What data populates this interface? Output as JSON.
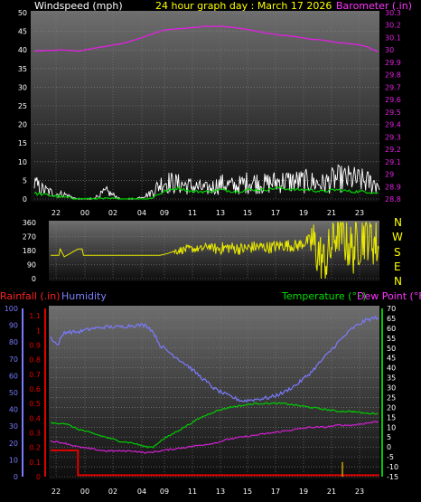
{
  "header": {
    "left_label": "Windspeed (mph)",
    "title": "24 hour graph day : March 17 2026",
    "right_label": "Barometer (.in)"
  },
  "lower_header": {
    "rainfall_label": "Rainfall (.in)",
    "humidity_label": "Humidity",
    "temperature_label": "Temperature (°F)",
    "dewpoint_label": "Dew Point (°F)"
  },
  "compass": [
    "N",
    "W",
    "S",
    "E",
    "N"
  ],
  "colors": {
    "wind_speed": "#ffffff",
    "wind_avg": "#00d000",
    "barometer": "#e020e0",
    "direction": "#e8e800",
    "rain": "#e00000",
    "rain_rate": "#c8a000",
    "humidity": "#7a7aff",
    "temperature": "#00cc00",
    "dewpoint": "#d020d0",
    "title": "#ffff00",
    "tick": "#ffffff"
  },
  "chart_data": [
    {
      "type": "line",
      "name": "wind-barometer",
      "x_tick_labels": [
        "22",
        "00",
        "02",
        "04",
        "09",
        "11",
        "13",
        "15",
        "17",
        "19",
        "21",
        "23"
      ],
      "y_left_ticks": [
        0,
        5,
        10,
        15,
        20,
        25,
        30,
        35,
        40,
        45,
        50
      ],
      "y_right_ticks": [
        "28.8",
        "28.9",
        "29",
        "29.1",
        "29.2",
        "29.3",
        "29.4",
        "29.5",
        "29.6",
        "29.7",
        "29.8",
        "29.9",
        "30",
        "30.1",
        "30.2",
        "30.3"
      ],
      "ylim_left": [
        0,
        50
      ],
      "ylim_right": [
        28.8,
        30.3
      ],
      "series": [
        {
          "key": "barometer",
          "axis": "right",
          "x": [
            0,
            2,
            3,
            4.5,
            6,
            7,
            8,
            9,
            10,
            11,
            12,
            13,
            14,
            15,
            16,
            17,
            18,
            19,
            20,
            21,
            22,
            23,
            24
          ],
          "y": [
            29.99,
            30.0,
            29.99,
            30.02,
            30.05,
            30.08,
            30.12,
            30.16,
            30.17,
            30.18,
            30.19,
            30.19,
            30.18,
            30.16,
            30.14,
            30.12,
            30.11,
            30.09,
            30.08,
            30.06,
            30.05,
            30.03,
            29.98
          ]
        },
        {
          "key": "wind_gust_envelope",
          "axis": "left",
          "x": [
            0,
            0.5,
            1,
            1.5,
            2,
            3,
            4,
            5,
            6,
            7,
            8,
            9,
            10,
            11,
            12,
            13,
            14,
            15,
            16,
            17,
            18,
            19,
            20,
            21,
            22,
            23,
            24
          ],
          "y": [
            6,
            4,
            3,
            2,
            2,
            0,
            0,
            3,
            0,
            0,
            2,
            7,
            6,
            5,
            4,
            6,
            5,
            7,
            6,
            7,
            7,
            7,
            6,
            8,
            8,
            7,
            6
          ]
        },
        {
          "key": "wind_avg",
          "axis": "left",
          "x": [
            0,
            1,
            2,
            3,
            4,
            5,
            6,
            7,
            8,
            9,
            10,
            11,
            12,
            13,
            14,
            15,
            16,
            17,
            18,
            19,
            20,
            21,
            22,
            23,
            24
          ],
          "y": [
            1.5,
            1,
            0.5,
            0,
            0,
            0,
            0,
            0,
            0,
            2,
            3,
            2,
            2,
            2.5,
            2,
            2.5,
            2.5,
            3,
            2.5,
            2.5,
            2,
            2.5,
            2,
            2,
            1.5
          ]
        }
      ]
    },
    {
      "type": "scatter",
      "name": "wind-direction",
      "y_ticks": [
        0,
        90,
        180,
        270,
        360
      ],
      "ylim": [
        0,
        360
      ],
      "x": [
        0,
        0.6,
        0.7,
        1,
        2,
        2.3,
        2.4,
        5,
        8,
        8.5,
        9,
        10,
        11,
        11.5,
        12,
        13,
        14,
        15,
        16,
        17,
        18,
        19,
        20,
        21,
        22,
        23,
        24
      ],
      "y": [
        150,
        150,
        190,
        140,
        190,
        190,
        150,
        150,
        150,
        160,
        175,
        190,
        190,
        210,
        190,
        200,
        190,
        205,
        200,
        215,
        210,
        250,
        90,
        330,
        180,
        300,
        200
      ]
    },
    {
      "type": "line",
      "name": "temp-humidity-rain",
      "y_left_humidity_ticks": [
        0,
        10,
        20,
        30,
        40,
        50,
        60,
        70,
        80,
        90,
        100
      ],
      "y_left_rain_ticks": [
        "0",
        "0.1",
        "0.2",
        "0.3",
        "0.4",
        "0.5",
        "0.6",
        "0.7",
        "0.8",
        "0.9",
        "1",
        "1.1"
      ],
      "y_right_ticks": [
        -15,
        -10,
        -5,
        0,
        5,
        10,
        15,
        20,
        25,
        30,
        35,
        40,
        45,
        50,
        55,
        60,
        65,
        70
      ],
      "ylim_humidity": [
        0,
        100
      ],
      "ylim_rain": [
        0,
        1.15
      ],
      "ylim_temp": [
        -15,
        70
      ],
      "series": [
        {
          "key": "humidity",
          "axis": "humidity",
          "x": [
            0,
            0.5,
            1,
            2,
            3,
            4,
            5,
            6,
            7,
            7.5,
            8,
            9,
            10,
            11,
            12,
            13,
            14,
            15,
            16,
            17,
            18,
            19,
            20,
            21,
            22,
            23,
            24
          ],
          "y": [
            83,
            78,
            86,
            86,
            88,
            89,
            89,
            90,
            90,
            86,
            78,
            72,
            66,
            59,
            52,
            48,
            45,
            46,
            47,
            50,
            55,
            62,
            71,
            80,
            88,
            93,
            95
          ]
        },
        {
          "key": "temperature",
          "axis": "temp",
          "x": [
            0,
            1,
            2,
            3,
            4,
            5,
            6,
            7,
            7.5,
            8,
            9,
            10,
            11,
            12,
            13,
            14,
            15,
            16,
            17,
            18,
            19,
            20,
            21,
            22,
            23,
            24
          ],
          "y": [
            12,
            12,
            9,
            7,
            5,
            3,
            2,
            0,
            0,
            3,
            7,
            11,
            15,
            18,
            20,
            21,
            22,
            22,
            22,
            21,
            20,
            19,
            18,
            18,
            17,
            17
          ]
        },
        {
          "key": "dewpoint",
          "axis": "temp",
          "x": [
            0,
            1,
            2,
            3,
            4,
            5,
            6,
            7,
            8,
            9,
            10,
            11,
            12,
            13,
            14,
            15,
            16,
            17,
            18,
            19,
            20,
            21,
            22,
            23,
            24
          ],
          "y": [
            3,
            2,
            0,
            -1,
            -2,
            -2,
            -2,
            -3,
            -2,
            -1,
            0,
            1,
            2,
            4,
            5,
            6,
            7,
            8,
            9,
            10,
            10,
            11,
            11,
            12,
            13
          ]
        },
        {
          "key": "rain",
          "axis": "rain",
          "x": [
            0,
            2,
            2,
            24
          ],
          "y": [
            0.18,
            0.18,
            0.01,
            0.01
          ]
        },
        {
          "key": "rain_rate",
          "axis": "rain",
          "x": [
            21.3,
            21.3
          ],
          "y": [
            0,
            0.1
          ]
        }
      ]
    }
  ]
}
